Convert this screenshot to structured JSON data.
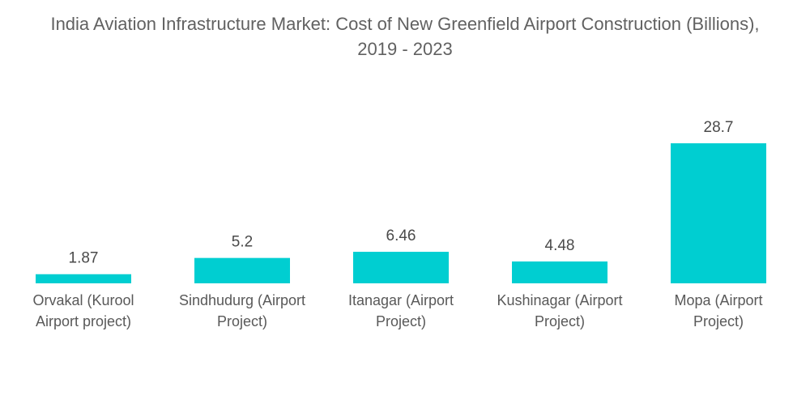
{
  "chart_data": {
    "type": "bar",
    "title_lines": [
      "India Aviation Infrastructure Market: Cost of New Greenfield Airport Construction (Billions),",
      "2019 - 2023"
    ],
    "categories": [
      [
        "Orvakal (Kurool",
        "Airport project)"
      ],
      [
        "Sindhudurg (Airport",
        "Project)"
      ],
      [
        "Itanagar (Airport",
        "Project)"
      ],
      [
        "Kushinagar (Airport",
        "Project)"
      ],
      [
        "Mopa (Airport",
        "Project)"
      ]
    ],
    "values": [
      1.87,
      5.2,
      6.46,
      4.48,
      28.7
    ],
    "value_labels": [
      "1.87",
      "5.2",
      "6.46",
      "4.48",
      "28.7"
    ],
    "bar_color": "#00CED1",
    "xlabel": "",
    "ylabel": "",
    "ylim": [
      0,
      28.7
    ],
    "grid": false,
    "legend": "none"
  }
}
